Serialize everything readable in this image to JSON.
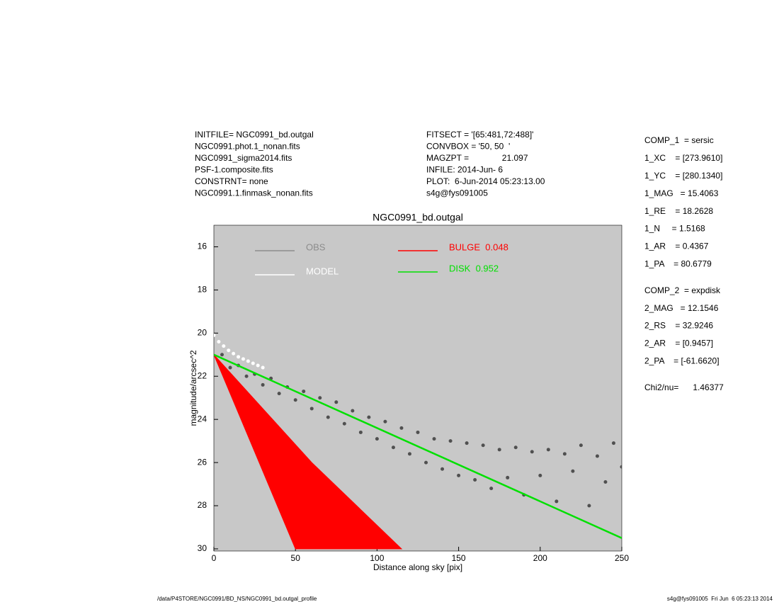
{
  "header": {
    "left": [
      "INITFILE= NGC0991_bd.outgal",
      "NGC0991.phot.1_nonan.fits",
      "NGC0991_sigma2014.fits",
      "PSF-1.composite.fits",
      "CONSTRNT= none",
      "NGC0991.1.finmask_nonan.fits"
    ],
    "middle": [
      "FITSECT = '[65:481,72:488]'",
      "CONVBOX = '50, 50  '",
      "MAGZPT =              21.097",
      "INFILE: 2014-Jun- 6",
      "PLOT:  6-Jun-2014 05:23:13.00",
      "s4g@fys091005"
    ]
  },
  "params": [
    [
      "COMP_1  = sersic",
      "1_XC    = [273.9610]",
      "1_YC    = [280.1340]",
      "1_MAG   = 15.4063",
      "1_RE    = 18.2628",
      "1_N     = 1.5168",
      "1_AR    = 0.4367",
      "1_PA    = 80.6779"
    ],
    [
      "COMP_2  = expdisk",
      "2_MAG   = 12.1546",
      "2_RS    = 32.9246",
      "2_AR    = [0.9457]",
      "2_PA    = [-61.6620]"
    ],
    [
      "Chi2/nu=      1.46377"
    ]
  ],
  "footer": {
    "left": "/data/P4STORE/NGC0991/BD_NS/NGC0991_bd.outgal_profile",
    "right": "s4g@fys091005  Fri Jun  6 05:23:13 2014"
  },
  "chart_data": {
    "type": "scatter",
    "title": "NGC0991_bd.outgal",
    "xlabel": "Distance along sky [pix]",
    "ylabel": "magnitude/arcsec^2",
    "xlim": [
      0,
      250
    ],
    "ylim": [
      30.1,
      15.0
    ],
    "xticks": [
      0,
      50,
      100,
      150,
      200,
      250
    ],
    "yticks": [
      16,
      18,
      20,
      22,
      24,
      26,
      28,
      30
    ],
    "background": "#c8c8c8",
    "series": [
      {
        "name": "OBS",
        "color": "#505050",
        "legend_color": "#8c8c8c",
        "mode": "points",
        "x": [
          5,
          10,
          15,
          20,
          25,
          30,
          35,
          40,
          45,
          50,
          55,
          60,
          65,
          70,
          75,
          80,
          85,
          90,
          95,
          100,
          105,
          110,
          115,
          120,
          125,
          130,
          135,
          140,
          145,
          150,
          155,
          160,
          165,
          170,
          175,
          180,
          185,
          190,
          195,
          200,
          205,
          210,
          215,
          220,
          225,
          230,
          235,
          240,
          245,
          250
        ],
        "values": [
          21.0,
          21.6,
          21.5,
          22.0,
          21.9,
          22.4,
          22.1,
          22.8,
          22.5,
          23.1,
          22.7,
          23.5,
          23.0,
          23.9,
          23.2,
          24.2,
          23.6,
          24.6,
          23.9,
          24.9,
          24.1,
          25.3,
          24.4,
          25.6,
          24.6,
          26.0,
          24.9,
          26.3,
          25.0,
          26.6,
          25.1,
          26.8,
          25.2,
          27.2,
          25.4,
          26.7,
          25.3,
          27.5,
          25.5,
          26.6,
          25.4,
          27.8,
          25.6,
          26.4,
          25.2,
          28.0,
          25.7,
          26.9,
          25.1,
          26.2
        ]
      },
      {
        "name": "MODEL",
        "color": "#ffffff",
        "mode": "points",
        "x": [
          0,
          3,
          6,
          9,
          12,
          15,
          18,
          21,
          24,
          27,
          30
        ],
        "values": [
          20.1,
          20.4,
          20.6,
          20.8,
          20.95,
          21.1,
          21.2,
          21.3,
          21.4,
          21.5,
          21.6
        ]
      },
      {
        "name": "BULGE  0.048",
        "color": "#ff0000",
        "mode": "fill",
        "x": [
          0,
          50,
          115,
          60,
          0
        ],
        "values": [
          21.0,
          30.0,
          30.0,
          26.0,
          21.0
        ]
      },
      {
        "name": "DISK  0.952",
        "color": "#00e000",
        "mode": "line",
        "x": [
          0,
          250
        ],
        "values": [
          21.0,
          29.5
        ]
      }
    ]
  }
}
